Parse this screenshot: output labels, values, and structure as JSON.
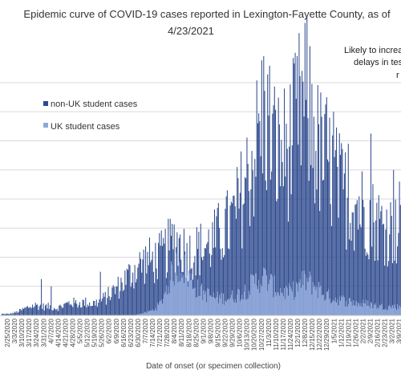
{
  "chart_data": {
    "type": "bar",
    "stacked": true,
    "title_line1": "Epidemic curve of COVID-19 cases reported in Lexington-Fayette County, as of",
    "title_line2": "4/23/2021",
    "annotation_lines": [
      "Likely to increas",
      "delays in tes",
      "r"
    ],
    "xlabel": "Date of onset (or specimen collection)",
    "legend_position": "top-left",
    "series": [
      {
        "name": "non-UK student cases",
        "color": "#2f4b8f"
      },
      {
        "name": "UK student cases",
        "color": "#8fa8dc"
      }
    ],
    "x_ticks": [
      "2/25/2020",
      "3/3/2020",
      "3/10/2020",
      "3/17/2020",
      "3/24/2020",
      "3/31/2020",
      "4/7/2020",
      "4/14/2020",
      "4/21/2020",
      "4/28/2020",
      "5/5/2020",
      "5/12/2020",
      "5/19/2020",
      "5/26/2020",
      "6/2/2020",
      "6/9/2020",
      "6/16/2020",
      "6/23/2020",
      "6/30/2020",
      "7/7/2020",
      "7/14/2020",
      "7/21/2020",
      "7/28/2020",
      "8/4/2020",
      "8/11/2020",
      "8/18/2020",
      "8/25/2020",
      "9/1/2020",
      "9/8/2020",
      "9/15/2020",
      "9/22/2020",
      "9/29/2020",
      "10/6/2020",
      "10/13/2020",
      "10/20/2020",
      "10/27/2020",
      "11/3/2020",
      "11/10/2020",
      "11/17/2020",
      "11/24/2020",
      "12/1/2020",
      "12/8/2020",
      "12/15/2020",
      "12/22/2020",
      "12/29/2020",
      "1/5/2021",
      "1/12/2021",
      "1/19/2021",
      "1/26/2021",
      "2/2/2021",
      "2/9/2021",
      "2/16/2021",
      "2/23/2021",
      "3/2/2021",
      "3/9/2021",
      "3/16/2021"
    ],
    "weekly_total_profile": [
      1,
      1,
      2,
      4,
      6,
      7,
      6,
      6,
      5,
      7,
      9,
      8,
      9,
      8,
      9,
      12,
      16,
      20,
      25,
      30,
      34,
      38,
      37,
      40,
      45,
      52,
      48,
      42,
      44,
      46,
      48,
      52,
      58,
      62,
      70,
      85,
      100,
      118,
      140,
      125,
      110,
      112,
      118,
      135,
      148,
      130,
      112,
      105,
      98,
      88,
      82,
      78,
      75,
      70,
      66,
      62,
      60,
      58
    ],
    "weekly_uk_profile": [
      0,
      0,
      0,
      0,
      0,
      0,
      0,
      0,
      0,
      0,
      0,
      0,
      0,
      0,
      0,
      0,
      0,
      0,
      0,
      0,
      1,
      2,
      4,
      8,
      20,
      32,
      36,
      28,
      20,
      16,
      14,
      12,
      12,
      12,
      14,
      16,
      20,
      24,
      26,
      22,
      18,
      16,
      16,
      20,
      24,
      22,
      18,
      14,
      12,
      11,
      10,
      9,
      8,
      8,
      7,
      6,
      6,
      6
    ],
    "daily_values_note": "values estimated visually; max daily count approx 150",
    "y_max": 160,
    "gridlines": true
  }
}
